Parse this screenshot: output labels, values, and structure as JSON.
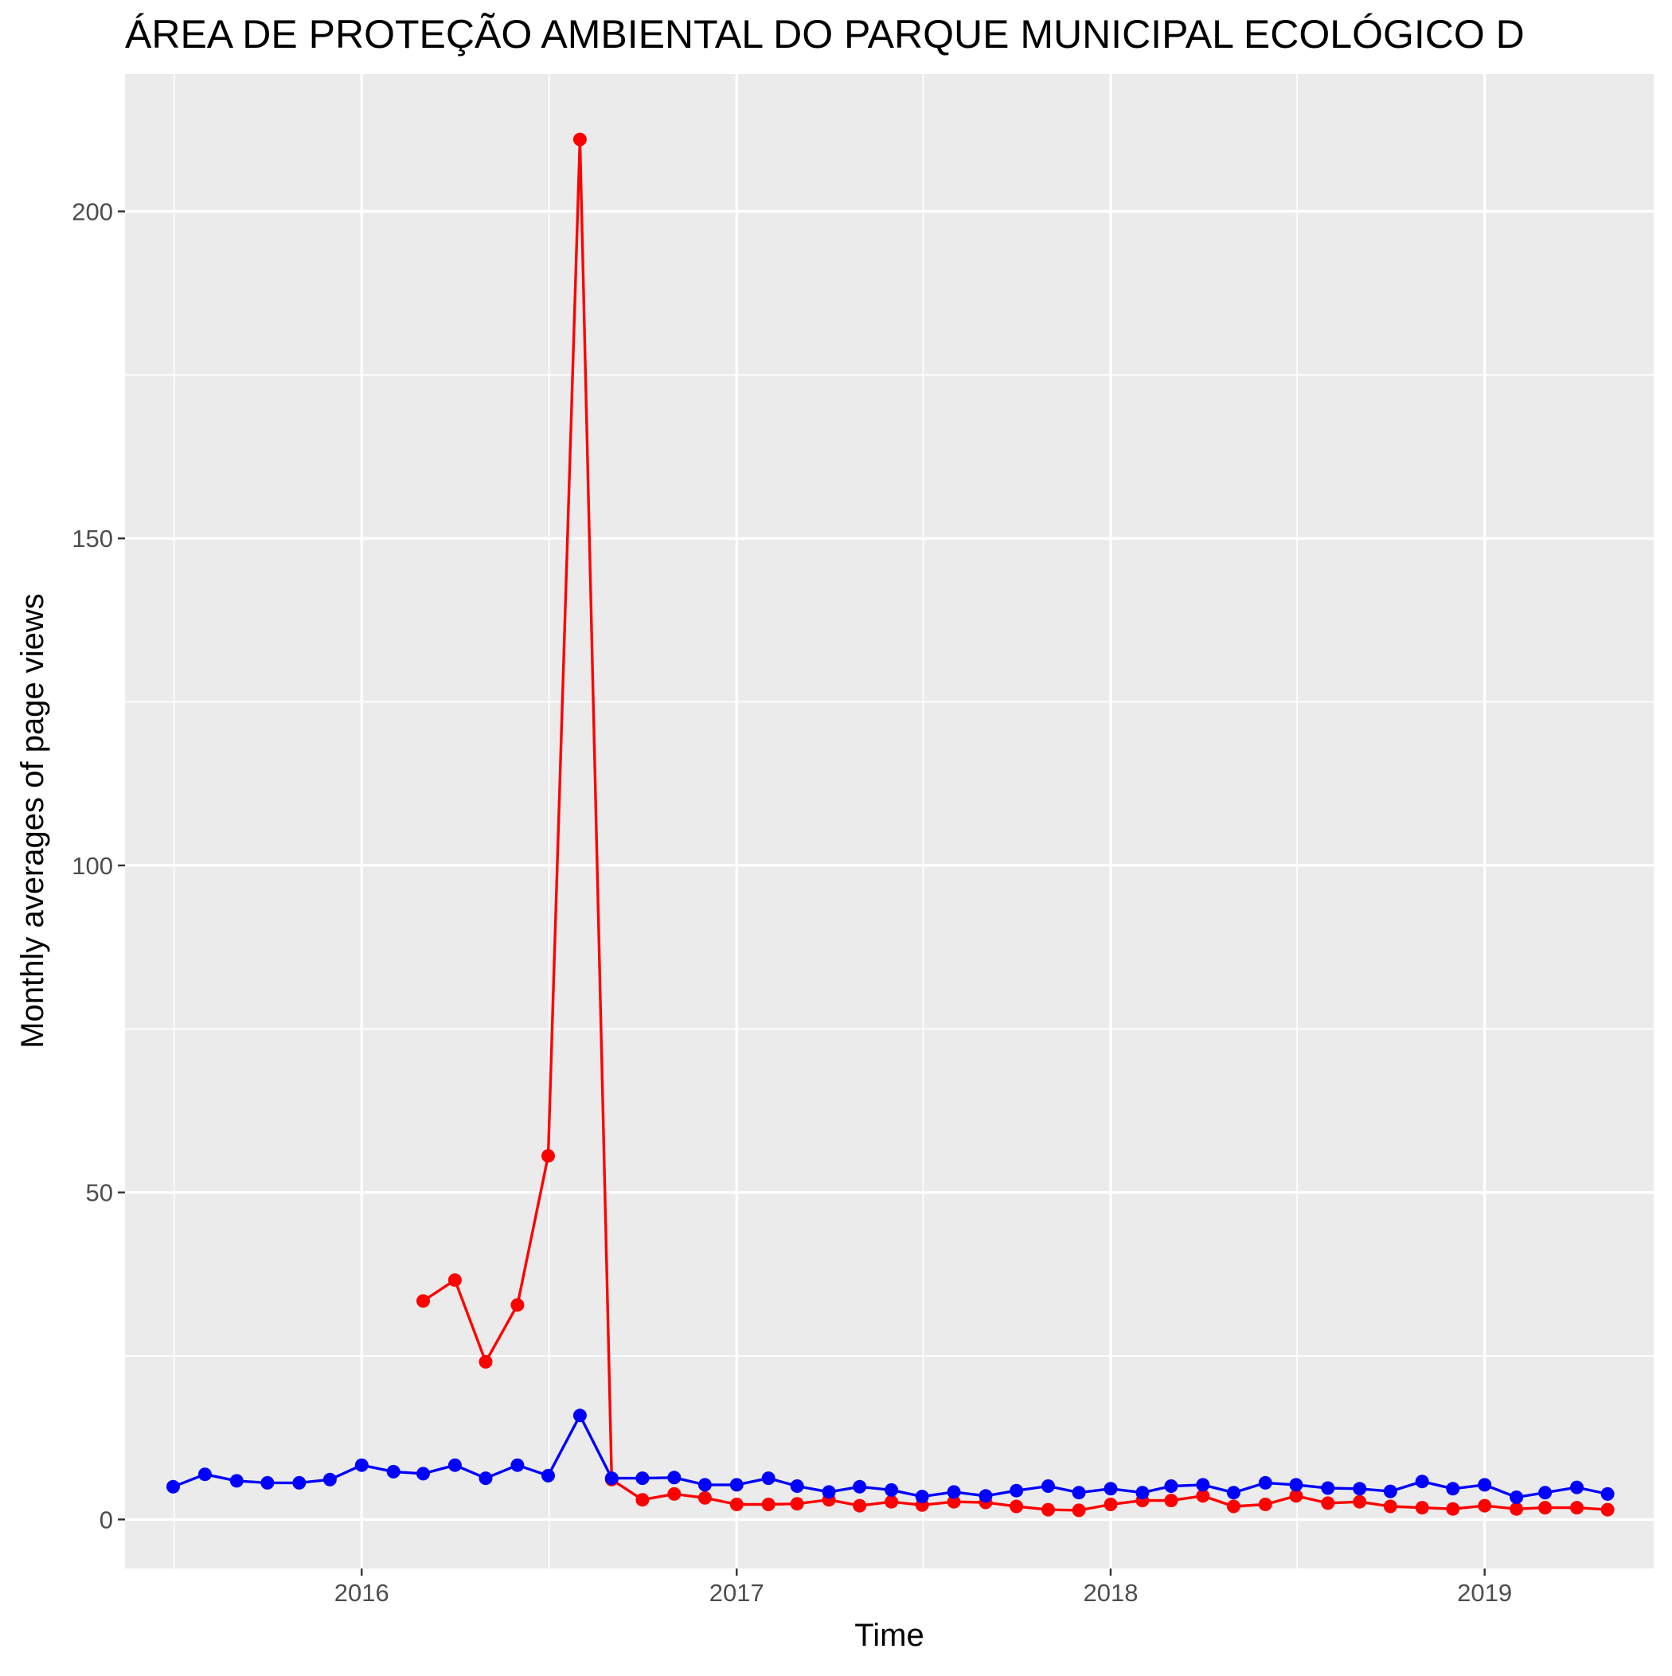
{
  "chart_data": {
    "type": "line",
    "title": "ÁREA DE PROTEÇÃO AMBIENTAL DO PARQUE MUNICIPAL ECOLÓGICO D",
    "xlabel": "Time",
    "ylabel": "Monthly averages of page views",
    "x_range": [
      "2015-05-15",
      "2019-06-15"
    ],
    "ylim": [
      -7.5,
      221
    ],
    "x_ticks": [
      {
        "date": "2016-01-01",
        "label": "2016"
      },
      {
        "date": "2017-01-01",
        "label": "2017"
      },
      {
        "date": "2018-01-01",
        "label": "2018"
      },
      {
        "date": "2019-01-01",
        "label": "2019"
      }
    ],
    "y_ticks": [
      0,
      50,
      100,
      150,
      200
    ],
    "grid": true,
    "background": "#ebebeb",
    "series": [
      {
        "color": "#ff0000",
        "x": [
          "2016-03-01",
          "2016-04-01",
          "2016-05-01",
          "2016-06-01",
          "2016-07-01",
          "2016-08-01",
          "2016-09-01",
          "2016-10-01",
          "2016-11-01",
          "2016-12-01",
          "2017-01-01",
          "2017-02-01",
          "2017-03-01",
          "2017-04-01",
          "2017-05-01",
          "2017-06-01",
          "2017-07-01",
          "2017-08-01",
          "2017-09-01",
          "2017-10-01",
          "2017-11-01",
          "2017-12-01",
          "2018-01-01",
          "2018-02-01",
          "2018-03-01",
          "2018-04-01",
          "2018-05-01",
          "2018-06-01",
          "2018-07-01",
          "2018-08-01",
          "2018-09-01",
          "2018-10-01",
          "2018-11-01",
          "2018-12-01",
          "2019-01-01",
          "2019-02-01",
          "2019-03-01",
          "2019-04-01",
          "2019-05-01"
        ],
        "values": [
          33.4,
          36.6,
          24.1,
          32.8,
          55.6,
          211,
          6.1,
          3.0,
          3.9,
          3.3,
          2.3,
          2.3,
          2.4,
          3.0,
          2.1,
          2.7,
          2.2,
          2.7,
          2.6,
          2.0,
          1.5,
          1.4,
          2.3,
          2.9,
          2.9,
          3.6,
          2.0,
          2.3,
          3.6,
          2.5,
          2.7,
          2.0,
          1.8,
          1.6,
          2.1,
          1.6,
          1.8,
          1.8,
          1.5
        ]
      },
      {
        "color": "#0000ff",
        "x": [
          "2015-07-01",
          "2015-08-01",
          "2015-09-01",
          "2015-10-01",
          "2015-11-01",
          "2015-12-01",
          "2016-01-01",
          "2016-02-01",
          "2016-03-01",
          "2016-04-01",
          "2016-05-01",
          "2016-06-01",
          "2016-07-01",
          "2016-08-01",
          "2016-09-01",
          "2016-10-01",
          "2016-11-01",
          "2016-12-01",
          "2017-01-01",
          "2017-02-01",
          "2017-03-01",
          "2017-04-01",
          "2017-05-01",
          "2017-06-01",
          "2017-07-01",
          "2017-08-01",
          "2017-09-01",
          "2017-10-01",
          "2017-11-01",
          "2017-12-01",
          "2018-01-01",
          "2018-02-01",
          "2018-03-01",
          "2018-04-01",
          "2018-05-01",
          "2018-06-01",
          "2018-07-01",
          "2018-08-01",
          "2018-09-01",
          "2018-10-01",
          "2018-11-01",
          "2018-12-01",
          "2019-01-01",
          "2019-02-01",
          "2019-03-01",
          "2019-04-01",
          "2019-05-01"
        ],
        "values": [
          5.0,
          6.9,
          5.9,
          5.6,
          5.6,
          6.1,
          8.3,
          7.3,
          7.0,
          8.3,
          6.3,
          8.3,
          6.7,
          15.9,
          6.3,
          6.3,
          6.4,
          5.3,
          5.3,
          6.3,
          5.1,
          4.2,
          5.0,
          4.5,
          3.5,
          4.2,
          3.6,
          4.4,
          5.1,
          4.1,
          4.7,
          4.1,
          5.1,
          5.3,
          4.1,
          5.6,
          5.3,
          4.8,
          4.7,
          4.3,
          5.8,
          4.7,
          5.3,
          3.4,
          4.1,
          4.9,
          3.9
        ]
      }
    ]
  }
}
